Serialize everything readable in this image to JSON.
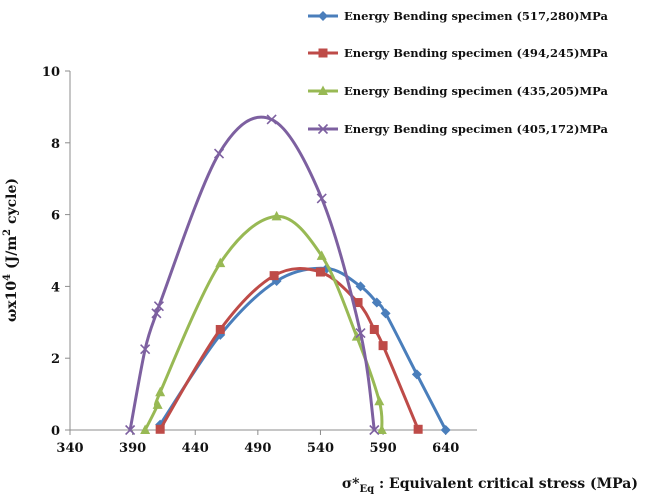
{
  "chart_data": {
    "type": "line",
    "title": "",
    "xlabel": "σ*Eq : Equivalent critical stress (MPa)",
    "xlabel_parts": {
      "symbol": "σ*",
      "subscript": "Eq",
      "rest": " : Equivalent critical stress (MPa)"
    },
    "ylabel": "ωx10⁴ (J/m² cycle)",
    "ylabel_parts": {
      "a": "ωx10",
      "exp1": "4",
      "b": " (J/m",
      "exp2": "2",
      "c": " cycle)"
    },
    "xlim": [
      340,
      665
    ],
    "ylim": [
      0,
      10
    ],
    "xticks": [
      "340",
      "390",
      "440",
      "490",
      "540",
      "590",
      "640"
    ],
    "yticks": [
      "0",
      "2",
      "4",
      "6",
      "8",
      "10"
    ],
    "grid": false,
    "legend_position": "top-right",
    "series": [
      {
        "name": "Energy Bending specimen (517,280)MPa",
        "color": "#4a7ebb",
        "marker": "diamond",
        "points": [
          [
            412,
            0.15
          ],
          [
            460,
            2.65
          ],
          [
            505,
            4.15
          ],
          [
            545,
            4.5
          ],
          [
            572,
            4.0
          ],
          [
            585,
            3.55
          ],
          [
            592,
            3.25
          ],
          [
            617,
            1.55
          ],
          [
            640,
            0.0
          ]
        ]
      },
      {
        "name": "Energy Bending specimen (494,245)MPa",
        "color": "#be4b48",
        "marker": "square",
        "points": [
          [
            412,
            0.02
          ],
          [
            460,
            2.8
          ],
          [
            503,
            4.3
          ],
          [
            540,
            4.4
          ],
          [
            570,
            3.55
          ],
          [
            583,
            2.8
          ],
          [
            590,
            2.35
          ],
          [
            618,
            0.02
          ]
        ]
      },
      {
        "name": "Energy Bending specimen (435,205)MPa",
        "color": "#98b954",
        "marker": "triangle",
        "points": [
          [
            400,
            0.0
          ],
          [
            410,
            0.7
          ],
          [
            412,
            1.05
          ],
          [
            460,
            4.65
          ],
          [
            505,
            5.95
          ],
          [
            541,
            4.85
          ],
          [
            569,
            2.6
          ],
          [
            587,
            0.8
          ],
          [
            589,
            0.0
          ]
        ]
      },
      {
        "name": "Energy Bending specimen (405,172)MPa",
        "color": "#7d60a0",
        "marker": "x",
        "points": [
          [
            388,
            0.0
          ],
          [
            400,
            2.25
          ],
          [
            409,
            3.25
          ],
          [
            411,
            3.45
          ],
          [
            459,
            7.7
          ],
          [
            501,
            8.65
          ],
          [
            541,
            6.45
          ],
          [
            572,
            2.7
          ],
          [
            583,
            0.0
          ]
        ]
      }
    ]
  }
}
